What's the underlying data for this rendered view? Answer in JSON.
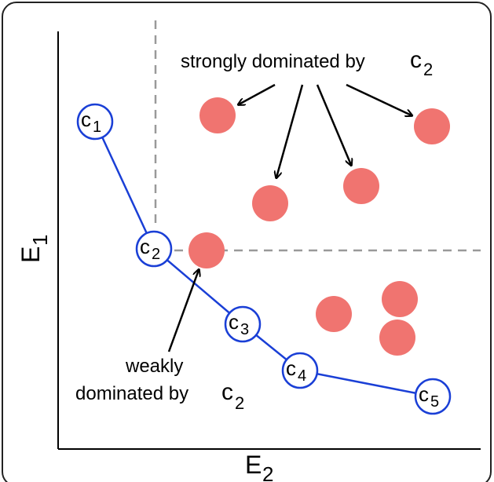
{
  "axes": {
    "x_label": "E",
    "x_sub": "2",
    "y_label": "E",
    "y_sub": "1"
  },
  "frontier": {
    "color": "#1a3fd6",
    "points": [
      {
        "id": "c1",
        "letter": "c",
        "sub": "1"
      },
      {
        "id": "c2",
        "letter": "c",
        "sub": "2"
      },
      {
        "id": "c3",
        "letter": "c",
        "sub": "3"
      },
      {
        "id": "c4",
        "letter": "c",
        "sub": "4"
      },
      {
        "id": "c5",
        "letter": "c",
        "sub": "5"
      }
    ]
  },
  "dominated": {
    "color": "#f07470",
    "count": 8
  },
  "annotations": {
    "strong": {
      "text": "strongly dominated by ",
      "letter": "c",
      "sub": "2"
    },
    "weak_line1": "weakly",
    "weak_line2": {
      "text": "dominated by ",
      "letter": "c",
      "sub": "2"
    }
  }
}
